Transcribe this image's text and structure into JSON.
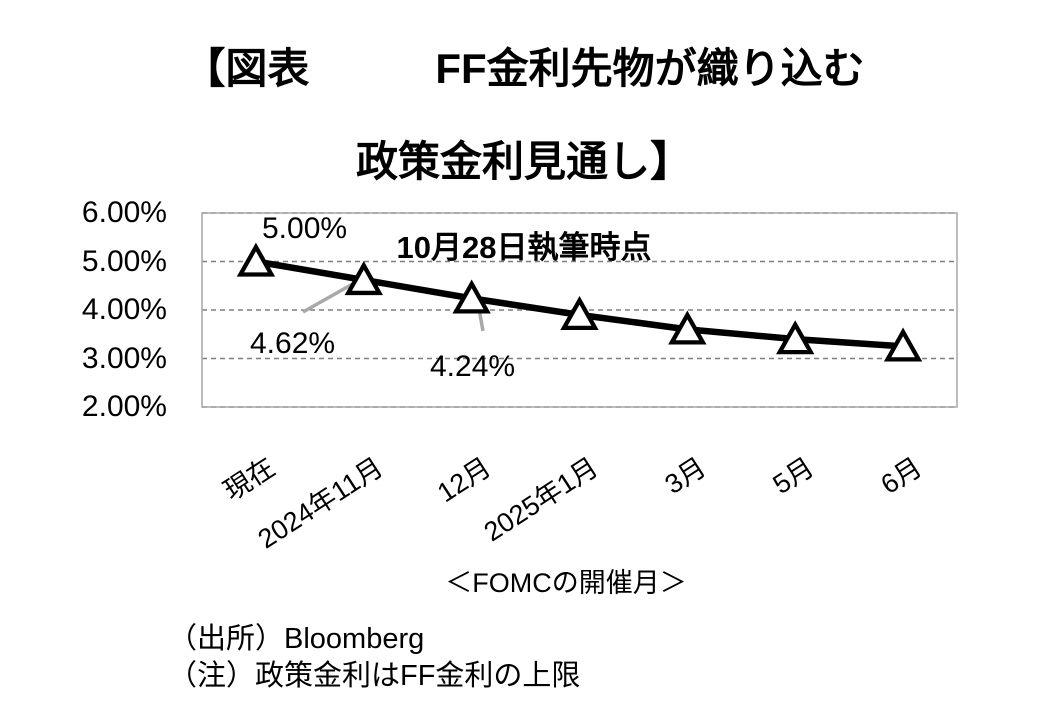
{
  "title": {
    "line1": "【図表　　　FF金利先物が織り込む",
    "line2": "政策金利見通し】",
    "subtitle": "10月28日執筆時点"
  },
  "chart_data": {
    "type": "line",
    "title": "【図表】FF金利先物が織り込む政策金利見通し（10月28日執筆時点）",
    "categories": [
      "現在",
      "2024年11月",
      "12月",
      "2025年1月",
      "3月",
      "5月",
      "6月"
    ],
    "values": [
      5.0,
      4.62,
      4.24,
      3.9,
      3.6,
      3.4,
      3.25
    ],
    "point_labels": [
      "5.00%",
      "4.62%",
      "4.24%",
      "",
      "",
      "",
      ""
    ],
    "ylim": [
      2.0,
      6.0
    ],
    "ytick_values": [
      6,
      5,
      4,
      3,
      2
    ],
    "yticks": [
      "6.00%",
      "5.00%",
      "4.00%",
      "3.00%",
      "2.00%"
    ],
    "xlabel": "＜FOMCの開催月＞",
    "ylabel": "",
    "grid": "horizontal-dashed",
    "legend": "none",
    "line_color": "#000000",
    "marker": {
      "shape": "triangle-up",
      "fill": "#ffffff",
      "stroke": "#000000"
    },
    "gridline_color": "#7f7f7f",
    "border_color": "#a6a6a6",
    "leader_line_color": "#a9a9a9"
  },
  "footer": {
    "source": "（出所）Bloomberg",
    "note": "（注）政策金利はFF金利の上限"
  }
}
